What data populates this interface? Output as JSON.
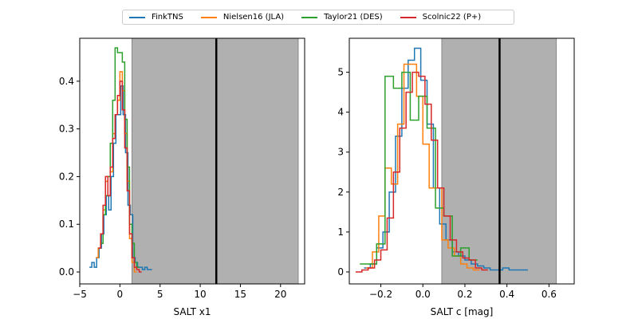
{
  "colors": {
    "FinkTNS": "#1f77b4",
    "Nielsen16 (JLA)": "#ff7f0e",
    "Taylor21 (DES)": "#2ca02c",
    "Scolnic22 (P+)": "#d62728",
    "shade": "#b0b0b0",
    "cutline": "#000000"
  },
  "legend": {
    "placement": "top-center",
    "items": [
      "FinkTNS",
      "Nielsen16 (JLA)",
      "Taylor21 (DES)",
      "Scolnic22 (P+)"
    ]
  },
  "chart_data": [
    {
      "type": "line",
      "style": "step-histogram",
      "xlabel": "SALT x1",
      "ylabel": "",
      "xlim": [
        -5,
        23
      ],
      "ylim": [
        -0.025,
        0.49
      ],
      "xticks": [
        -5,
        0,
        5,
        10,
        15,
        20
      ],
      "xtick_labels": [
        "−5",
        "0",
        "5",
        "10",
        "15",
        "20"
      ],
      "yticks": [
        0.0,
        0.1,
        0.2,
        0.3,
        0.4
      ],
      "ytick_labels": [
        "0.0",
        "0.1",
        "0.2",
        "0.3",
        "0.4"
      ],
      "shaded_region": [
        1.5,
        22.2
      ],
      "vertical_line": 12,
      "grid": false,
      "series": [
        {
          "name": "FinkTNS",
          "x": [
            -3.8,
            -3.5,
            -3.2,
            -2.9,
            -2.6,
            -2.3,
            -2.0,
            -1.7,
            -1.4,
            -1.1,
            -0.8,
            -0.5,
            -0.2,
            0.1,
            0.4,
            0.7,
            1.0,
            1.3,
            1.6,
            1.9,
            2.2,
            2.5,
            2.8,
            3.1,
            3.4,
            3.7
          ],
          "y": [
            0.01,
            0.02,
            0.01,
            0.03,
            0.05,
            0.08,
            0.12,
            0.16,
            0.13,
            0.2,
            0.27,
            0.33,
            0.33,
            0.39,
            0.33,
            0.25,
            0.14,
            0.12,
            0.03,
            0.02,
            0.01,
            0.01,
            0.005,
            0.01,
            0.005,
            0.005
          ]
        },
        {
          "name": "Nielsen16 (JLA)",
          "x": [
            -3.0,
            -2.7,
            -2.4,
            -2.1,
            -1.8,
            -1.5,
            -1.2,
            -0.9,
            -0.6,
            -0.3,
            0.0,
            0.3,
            0.6,
            0.9,
            1.2,
            1.5,
            1.8
          ],
          "y": [
            0.03,
            0.05,
            0.08,
            0.13,
            0.19,
            0.16,
            0.21,
            0.29,
            0.33,
            0.36,
            0.42,
            0.38,
            0.29,
            0.19,
            0.07,
            0.02,
            0.0
          ]
        },
        {
          "name": "Taylor21 (DES)",
          "x": [
            -2.4,
            -2.1,
            -1.8,
            -1.5,
            -1.2,
            -0.9,
            -0.6,
            -0.3,
            0.0,
            0.3,
            0.6,
            0.9,
            1.2,
            1.5,
            1.8,
            2.1
          ],
          "y": [
            0.06,
            0.12,
            0.16,
            0.2,
            0.27,
            0.36,
            0.47,
            0.46,
            0.46,
            0.44,
            0.32,
            0.22,
            0.1,
            0.06,
            0.02,
            0.01
          ]
        },
        {
          "name": "Scolnic22 (P+)",
          "x": [
            -2.7,
            -2.4,
            -2.1,
            -1.8,
            -1.5,
            -1.2,
            -0.9,
            -0.6,
            -0.3,
            0.0,
            0.3,
            0.6,
            0.9,
            1.2,
            1.5,
            1.8,
            2.1,
            2.4
          ],
          "y": [
            0.05,
            0.08,
            0.14,
            0.2,
            0.16,
            0.22,
            0.28,
            0.33,
            0.37,
            0.4,
            0.34,
            0.26,
            0.17,
            0.08,
            0.03,
            0.01,
            0.005,
            0.0
          ]
        }
      ]
    },
    {
      "type": "line",
      "style": "step-histogram",
      "xlabel": "SALT c [mag]",
      "ylabel": "",
      "xlim": [
        -0.35,
        0.72
      ],
      "ylim": [
        -0.3,
        5.85
      ],
      "xticks": [
        -0.2,
        0.0,
        0.2,
        0.4,
        0.6
      ],
      "xtick_labels": [
        "−0.2",
        "0.0",
        "0.2",
        "0.4",
        "0.6"
      ],
      "yticks": [
        0,
        1,
        2,
        3,
        4,
        5
      ],
      "ytick_labels": [
        "0",
        "1",
        "2",
        "3",
        "4",
        "5"
      ],
      "shaded_region": [
        0.09,
        0.635
      ],
      "vertical_line": 0.365,
      "grid": false,
      "series": [
        {
          "name": "FinkTNS",
          "x": [
            -0.28,
            -0.25,
            -0.22,
            -0.19,
            -0.16,
            -0.13,
            -0.1,
            -0.07,
            -0.04,
            -0.01,
            0.02,
            0.05,
            0.08,
            0.11,
            0.14,
            0.17,
            0.2,
            0.23,
            0.26,
            0.29,
            0.32,
            0.35,
            0.38,
            0.41,
            0.44,
            0.47
          ],
          "y": [
            0.1,
            0.2,
            0.6,
            1.0,
            2.0,
            3.4,
            4.6,
            5.3,
            5.6,
            4.8,
            3.7,
            2.1,
            1.2,
            0.8,
            0.5,
            0.4,
            0.3,
            0.2,
            0.15,
            0.1,
            0.05,
            0.05,
            0.1,
            0.05,
            0.05,
            0.05
          ]
        },
        {
          "name": "Nielsen16 (JLA)",
          "x": [
            -0.27,
            -0.24,
            -0.21,
            -0.18,
            -0.15,
            -0.12,
            -0.09,
            -0.06,
            -0.03,
            0.0,
            0.03,
            0.06,
            0.09,
            0.12,
            0.15,
            0.18,
            0.21,
            0.24
          ],
          "y": [
            0.1,
            0.5,
            1.4,
            2.6,
            2.2,
            3.7,
            5.2,
            5.2,
            4.4,
            3.2,
            2.1,
            2.1,
            0.8,
            0.6,
            0.4,
            0.2,
            0.1,
            0.05
          ]
        },
        {
          "name": "Taylor21 (DES)",
          "x": [
            -0.3,
            -0.26,
            -0.22,
            -0.18,
            -0.14,
            -0.1,
            -0.06,
            -0.02,
            0.02,
            0.06,
            0.1,
            0.14,
            0.18,
            0.22
          ],
          "y": [
            0.2,
            0.2,
            0.7,
            4.9,
            4.6,
            5.0,
            3.8,
            4.4,
            3.6,
            1.6,
            1.4,
            0.4,
            0.6,
            0.3
          ]
        },
        {
          "name": "Scolnic22 (P+)",
          "x": [
            -0.32,
            -0.29,
            -0.26,
            -0.23,
            -0.2,
            -0.17,
            -0.14,
            -0.11,
            -0.08,
            -0.05,
            -0.02,
            0.01,
            0.04,
            0.07,
            0.1,
            0.13,
            0.16,
            0.19,
            0.22,
            0.25,
            0.28
          ],
          "y": [
            0.0,
            0.05,
            0.1,
            0.3,
            0.55,
            1.35,
            2.5,
            3.6,
            4.5,
            5.0,
            4.9,
            4.2,
            3.3,
            2.1,
            1.4,
            0.8,
            0.5,
            0.35,
            0.3,
            0.1,
            0.05
          ]
        }
      ]
    }
  ]
}
